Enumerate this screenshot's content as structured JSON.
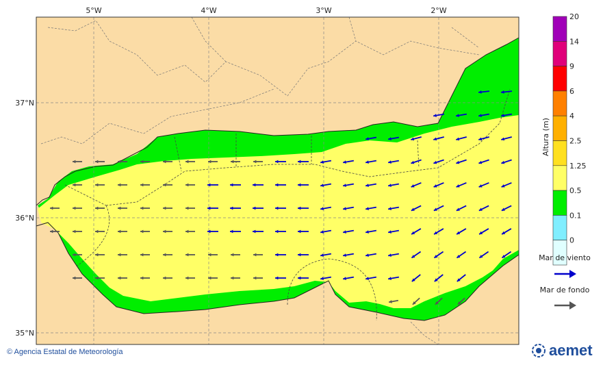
{
  "longitude_labels": [
    "5°W",
    "4°W",
    "3°W",
    "2°W"
  ],
  "latitude_labels": [
    "37°N",
    "36°N",
    "35°N"
  ],
  "colorbar": {
    "title": "Altura (m)",
    "ticks": [
      "20",
      "14",
      "9",
      "6",
      "4",
      "2.5",
      "1.25",
      "0.5",
      "0.1",
      "0"
    ],
    "colors": [
      "#a000b8",
      "#e0007a",
      "#ff0000",
      "#ff8000",
      "#ffb000",
      "#ffe020",
      "#ffff66",
      "#00ee00",
      "#80eeff",
      "#e0ffff"
    ]
  },
  "legend": {
    "wind_sea_label": "Mar de viento",
    "wind_sea_color": "#0000cc",
    "swell_label": "Mar de fondo",
    "swell_color": "#555555"
  },
  "colors": {
    "land": "#fbdca6",
    "sea_main": "#ffff66",
    "sea_coastal": "#00ee00"
  },
  "copyright": "© Agencia Estatal de Meteorología",
  "logo_text": "aemet"
}
